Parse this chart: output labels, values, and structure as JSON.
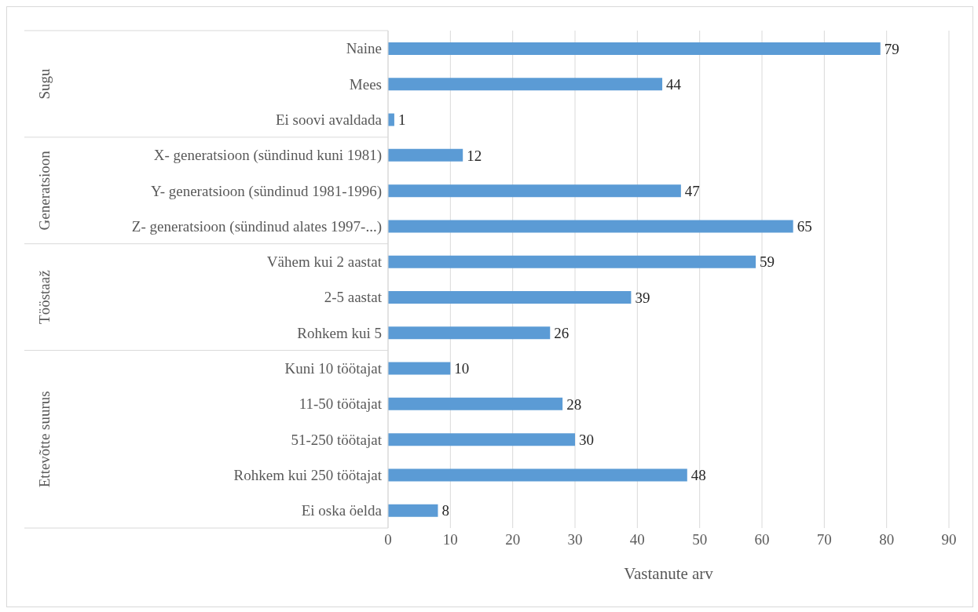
{
  "chart_data": {
    "type": "bar",
    "orientation": "horizontal",
    "xlabel": "Vastanute arv",
    "categories": [
      "Naine",
      "Mees",
      "Ei soovi avaldada",
      "X- generatsioon (sündinud kuni 1981)",
      "Y- generatsioon (sündinud 1981-1996)",
      "Z- generatsioon (sündinud alates 1997-...)",
      "Vähem kui 2 aastat",
      "2-5 aastat",
      "Rohkem kui 5",
      "Kuni 10 töötajat",
      "11-50 töötajat",
      "51-250 töötajat",
      "Rohkem kui 250 töötajat",
      "Ei oska öelda"
    ],
    "values": [
      79,
      44,
      1,
      12,
      47,
      65,
      59,
      39,
      26,
      10,
      28,
      30,
      48,
      8
    ],
    "color": "#5b9bd5",
    "xlim": [
      0,
      90
    ],
    "xticks": [
      0,
      10,
      20,
      30,
      40,
      50,
      60,
      70,
      80,
      90
    ],
    "grid": "x",
    "data_labels": true,
    "annotations": [
      "Sugu",
      "Generatsioon",
      "Tööstaaž",
      "Ettevõtte suurus"
    ]
  }
}
